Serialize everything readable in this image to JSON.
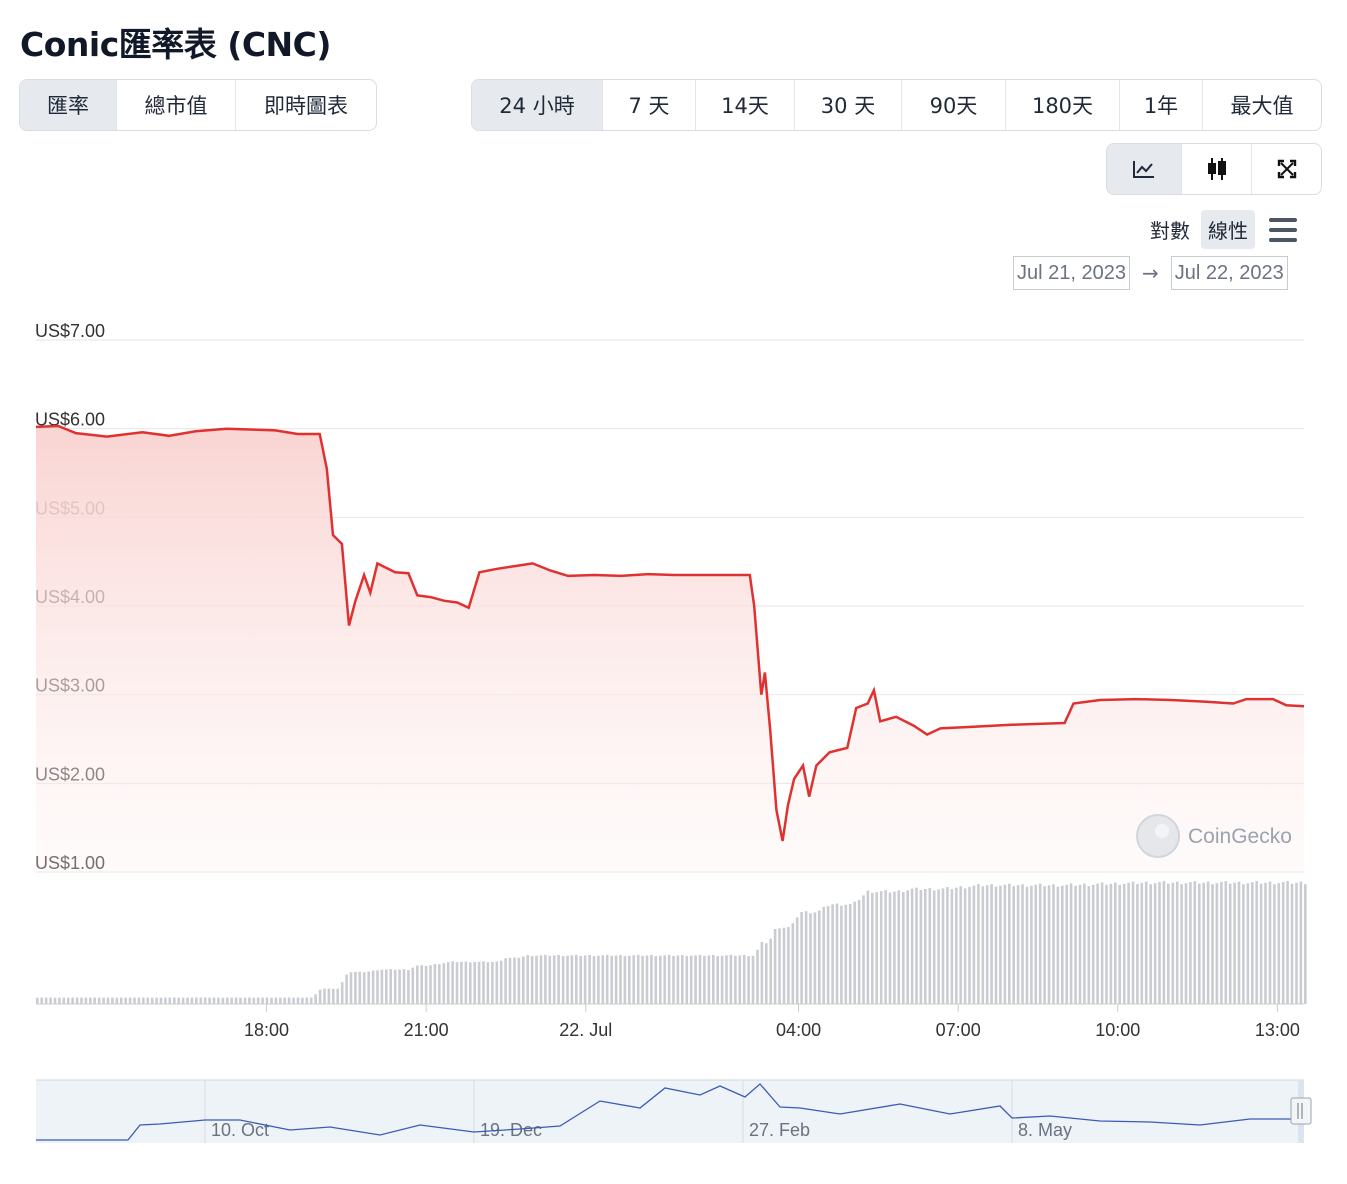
{
  "page_title": "Conic匯率表 (CNC)",
  "tabs_left": [
    {
      "label": "匯率",
      "active": true
    },
    {
      "label": "總市值",
      "active": false
    },
    {
      "label": "即時圖表",
      "active": false
    }
  ],
  "tabs_right": [
    {
      "label": "24 小時",
      "active": true
    },
    {
      "label": "7 天",
      "active": false
    },
    {
      "label": "14天",
      "active": false
    },
    {
      "label": "30 天",
      "active": false
    },
    {
      "label": "90天",
      "active": false
    },
    {
      "label": "180天",
      "active": false
    },
    {
      "label": "1年",
      "active": false
    },
    {
      "label": "最大值",
      "active": false
    }
  ],
  "view_toggle": [
    {
      "icon": "line-chart-icon",
      "active": true
    },
    {
      "icon": "candlestick-icon",
      "active": false
    },
    {
      "icon": "fullscreen-icon",
      "active": false
    }
  ],
  "scale": {
    "log_label": "對數",
    "linear_label": "線性",
    "active": "linear"
  },
  "date_range": {
    "from": "Jul 21, 2023",
    "to": "Jul 22, 2023",
    "arrow": "→"
  },
  "watermark": "CoinGecko",
  "colors": {
    "line": "#e03131",
    "area_top": "#f9d4d2",
    "volume": "#c9ccd1",
    "navigator_line": "#3b5bb5",
    "navigator_bg": "#eef3f8"
  },
  "chart_data": {
    "type": "line",
    "title": "",
    "ylabel": "",
    "y_ticks": [
      "US$1.00",
      "US$2.00",
      "US$3.00",
      "US$4.00",
      "US$5.00",
      "US$6.00",
      "US$7.00"
    ],
    "ylim": [
      1,
      7
    ],
    "x_ticks": [
      "18:00",
      "21:00",
      "22. Jul",
      "04:00",
      "07:00",
      "10:00",
      "13:00"
    ],
    "x_start": "2023-07-21 13:40",
    "x_end": "2023-07-22 13:30",
    "series": [
      {
        "name": "",
        "points": [
          [
            "2023-07-21 13:40",
            6.02
          ],
          [
            "2023-07-21 14:05",
            6.03
          ],
          [
            "2023-07-21 14:25",
            5.95
          ],
          [
            "2023-07-21 15:00",
            5.91
          ],
          [
            "2023-07-21 15:40",
            5.96
          ],
          [
            "2023-07-21 16:10",
            5.92
          ],
          [
            "2023-07-21 16:40",
            5.97
          ],
          [
            "2023-07-21 17:15",
            6.0
          ],
          [
            "2023-07-21 17:45",
            5.99
          ],
          [
            "2023-07-21 18:10",
            5.98
          ],
          [
            "2023-07-21 18:35",
            5.94
          ],
          [
            "2023-07-21 19:00",
            5.94
          ],
          [
            "2023-07-21 19:08",
            5.55
          ],
          [
            "2023-07-21 19:15",
            4.8
          ],
          [
            "2023-07-21 19:25",
            4.7
          ],
          [
            "2023-07-21 19:33",
            3.78
          ],
          [
            "2023-07-21 19:40",
            4.05
          ],
          [
            "2023-07-21 19:50",
            4.35
          ],
          [
            "2023-07-21 19:57",
            4.15
          ],
          [
            "2023-07-21 20:05",
            4.48
          ],
          [
            "2023-07-21 20:15",
            4.43
          ],
          [
            "2023-07-21 20:25",
            4.38
          ],
          [
            "2023-07-21 20:40",
            4.37
          ],
          [
            "2023-07-21 20:50",
            4.12
          ],
          [
            "2023-07-21 21:05",
            4.1
          ],
          [
            "2023-07-21 21:20",
            4.06
          ],
          [
            "2023-07-21 21:35",
            4.04
          ],
          [
            "2023-07-21 21:48",
            3.98
          ],
          [
            "2023-07-21 22:00",
            4.38
          ],
          [
            "2023-07-21 22:20",
            4.42
          ],
          [
            "2023-07-21 22:40",
            4.45
          ],
          [
            "2023-07-21 23:00",
            4.48
          ],
          [
            "2023-07-21 23:20",
            4.4
          ],
          [
            "2023-07-21 23:40",
            4.34
          ],
          [
            "2023-07-22 00:10",
            4.35
          ],
          [
            "2023-07-22 00:40",
            4.34
          ],
          [
            "2023-07-22 01:10",
            4.36
          ],
          [
            "2023-07-22 01:40",
            4.35
          ],
          [
            "2023-07-22 02:10",
            4.35
          ],
          [
            "2023-07-22 02:40",
            4.35
          ],
          [
            "2023-07-22 03:05",
            4.35
          ],
          [
            "2023-07-22 03:10",
            4.0
          ],
          [
            "2023-07-22 03:18",
            3.0
          ],
          [
            "2023-07-22 03:22",
            3.25
          ],
          [
            "2023-07-22 03:28",
            2.6
          ],
          [
            "2023-07-22 03:35",
            1.7
          ],
          [
            "2023-07-22 03:42",
            1.35
          ],
          [
            "2023-07-22 03:48",
            1.75
          ],
          [
            "2023-07-22 03:55",
            2.05
          ],
          [
            "2023-07-22 04:05",
            2.2
          ],
          [
            "2023-07-22 04:12",
            1.85
          ],
          [
            "2023-07-22 04:20",
            2.2
          ],
          [
            "2023-07-22 04:35",
            2.35
          ],
          [
            "2023-07-22 04:55",
            2.4
          ],
          [
            "2023-07-22 05:05",
            2.85
          ],
          [
            "2023-07-22 05:18",
            2.9
          ],
          [
            "2023-07-22 05:25",
            3.05
          ],
          [
            "2023-07-22 05:32",
            2.7
          ],
          [
            "2023-07-22 05:50",
            2.75
          ],
          [
            "2023-07-22 06:10",
            2.65
          ],
          [
            "2023-07-22 06:25",
            2.55
          ],
          [
            "2023-07-22 06:40",
            2.62
          ],
          [
            "2023-07-22 07:20",
            2.64
          ],
          [
            "2023-07-22 08:00",
            2.66
          ],
          [
            "2023-07-22 08:30",
            2.67
          ],
          [
            "2023-07-22 09:00",
            2.68
          ],
          [
            "2023-07-22 09:10",
            2.9
          ],
          [
            "2023-07-22 09:40",
            2.94
          ],
          [
            "2023-07-22 10:20",
            2.95
          ],
          [
            "2023-07-22 11:00",
            2.94
          ],
          [
            "2023-07-22 11:40",
            2.92
          ],
          [
            "2023-07-22 12:10",
            2.9
          ],
          [
            "2023-07-22 12:25",
            2.95
          ],
          [
            "2023-07-22 12:55",
            2.95
          ],
          [
            "2023-07-22 13:10",
            2.88
          ],
          [
            "2023-07-22 13:30",
            2.87
          ]
        ]
      }
    ],
    "volume_levels": [
      [
        "2023-07-21 13:40",
        0.05
      ],
      [
        "2023-07-21 18:50",
        0.05
      ],
      [
        "2023-07-21 19:20",
        0.12
      ],
      [
        "2023-07-21 19:50",
        0.25
      ],
      [
        "2023-07-21 20:40",
        0.27
      ],
      [
        "2023-07-21 21:00",
        0.3
      ],
      [
        "2023-07-21 22:20",
        0.33
      ],
      [
        "2023-07-21 22:40",
        0.36
      ],
      [
        "2023-07-21 23:20",
        0.38
      ],
      [
        "2023-07-22 03:10",
        0.38
      ],
      [
        "2023-07-22 03:25",
        0.48
      ],
      [
        "2023-07-22 03:50",
        0.6
      ],
      [
        "2023-07-22 04:20",
        0.72
      ],
      [
        "2023-07-22 05:00",
        0.78
      ],
      [
        "2023-07-22 05:50",
        0.88
      ],
      [
        "2023-07-22 06:40",
        0.9
      ],
      [
        "2023-07-22 09:00",
        0.93
      ],
      [
        "2023-07-22 13:30",
        0.95
      ]
    ],
    "navigator": {
      "x_ticks": [
        "10. Oct",
        "19. Dec",
        "27. Feb",
        "8. May"
      ]
    }
  }
}
